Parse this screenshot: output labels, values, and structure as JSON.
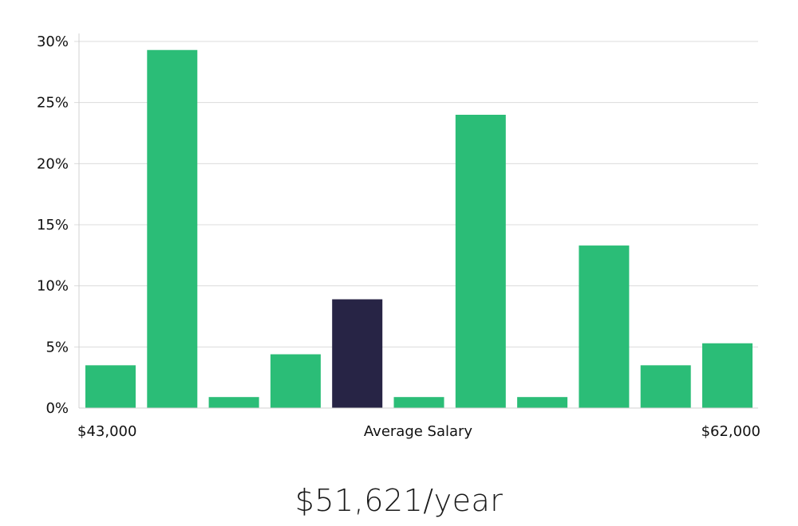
{
  "chart_data": {
    "type": "bar",
    "values": [
      3.5,
      29.3,
      0.9,
      4.4,
      8.9,
      0.9,
      24.0,
      0.9,
      13.3,
      3.5,
      5.3
    ],
    "highlight_index": 4,
    "ylim": [
      0,
      30
    ],
    "y_ticks": [
      0,
      5,
      10,
      15,
      20,
      25,
      30
    ],
    "y_tick_format": "percent",
    "x_min_label": "$43,000",
    "xlabel": "Average Salary",
    "x_max_label": "$62,000",
    "grid": true
  },
  "colors": {
    "bar": "#2bbd77",
    "bar_highlight": "#272445"
  },
  "salary_text": "$51,621/year"
}
